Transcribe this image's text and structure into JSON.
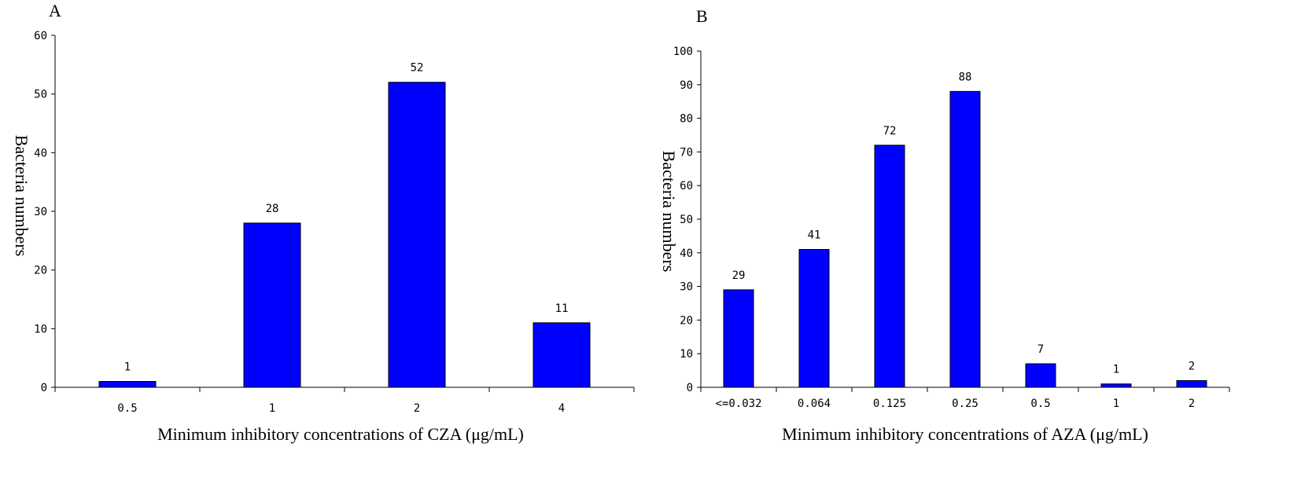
{
  "chart_data": [
    {
      "type": "bar",
      "panel": "A",
      "categories": [
        "0.5",
        "1",
        "2",
        "4"
      ],
      "values": [
        1,
        28,
        52,
        11
      ],
      "data_labels": [
        "1",
        "28",
        "52",
        "11"
      ],
      "title": "",
      "xlabel": "Minimum inhibitory concentrations of CZA (μg/mL)",
      "ylabel": "Bacteria numbers",
      "ylim": [
        0,
        60
      ],
      "yticks": [
        0,
        10,
        20,
        30,
        40,
        50,
        60
      ],
      "bar_color": "#0000ff",
      "grid": false
    },
    {
      "type": "bar",
      "panel": "B",
      "categories": [
        "<=0.032",
        "0.064",
        "0.125",
        "0.25",
        "0.5",
        "1",
        "2"
      ],
      "values": [
        29,
        41,
        72,
        88,
        7,
        1,
        2
      ],
      "data_labels": [
        "29",
        "41",
        "72",
        "88",
        "7",
        "1",
        "2"
      ],
      "title": "",
      "xlabel": "Minimum inhibitory concentrations of AZA (μg/mL)",
      "ylabel": "Bacteria numbers",
      "ylim": [
        0,
        100
      ],
      "yticks": [
        0,
        10,
        20,
        30,
        40,
        50,
        60,
        70,
        80,
        90,
        100
      ],
      "bar_color": "#0000ff",
      "grid": false
    }
  ]
}
